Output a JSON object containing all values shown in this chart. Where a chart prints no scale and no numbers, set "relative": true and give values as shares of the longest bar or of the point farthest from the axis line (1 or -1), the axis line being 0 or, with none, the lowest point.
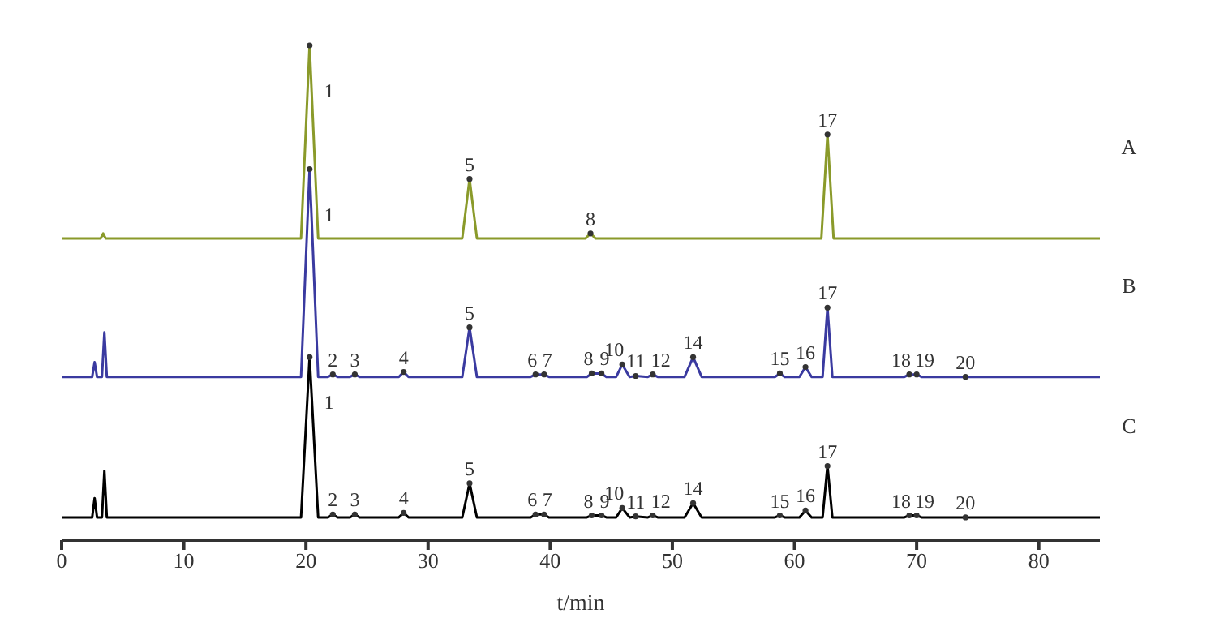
{
  "chart_data": {
    "type": "line",
    "relative": true,
    "xlabel": "t/min",
    "xlim": [
      0,
      85
    ],
    "xticks": [
      0,
      10,
      20,
      30,
      40,
      50,
      60,
      70,
      80
    ],
    "legend": false,
    "grid": false,
    "series": [
      {
        "name": "A",
        "color": "#8a9a2a",
        "x": [
          0,
          3.2,
          3.4,
          3.6,
          19.6,
          20.3,
          21.0,
          32.8,
          33.4,
          34.0,
          42.9,
          43.3,
          43.7,
          62.2,
          62.7,
          63.2,
          85
        ],
        "values": [
          0.61,
          0.61,
          0.62,
          0.61,
          0.61,
          1.0,
          0.61,
          0.61,
          0.73,
          0.61,
          0.61,
          0.62,
          0.61,
          0.61,
          0.82,
          0.61,
          0.61
        ]
      },
      {
        "name": "B",
        "color": "#3a3aa0",
        "x": [
          0,
          2.5,
          2.7,
          2.9,
          3.3,
          3.5,
          3.7,
          19.6,
          20.3,
          21.0,
          21.8,
          22.2,
          22.6,
          23.6,
          24.0,
          24.4,
          27.6,
          28.0,
          28.4,
          32.8,
          33.4,
          34.0,
          38.4,
          38.8,
          39.5,
          39.9,
          43.0,
          43.4,
          44.2,
          44.6,
          45.4,
          45.9,
          46.5,
          47.0,
          48.0,
          48.4,
          48.8,
          51.0,
          51.7,
          52.4,
          58.4,
          58.8,
          59.2,
          60.4,
          60.9,
          61.4,
          62.3,
          62.7,
          63.1,
          69.0,
          69.4,
          70.0,
          70.4,
          74.0,
          85
        ],
        "values": [
          0.33,
          0.33,
          0.36,
          0.33,
          0.33,
          0.42,
          0.33,
          0.33,
          0.75,
          0.33,
          0.33,
          0.335,
          0.33,
          0.33,
          0.335,
          0.33,
          0.33,
          0.34,
          0.33,
          0.33,
          0.43,
          0.33,
          0.33,
          0.335,
          0.335,
          0.33,
          0.33,
          0.337,
          0.337,
          0.33,
          0.33,
          0.355,
          0.33,
          0.332,
          0.33,
          0.335,
          0.33,
          0.33,
          0.37,
          0.33,
          0.33,
          0.337,
          0.33,
          0.33,
          0.35,
          0.33,
          0.33,
          0.47,
          0.33,
          0.33,
          0.335,
          0.335,
          0.33,
          0.33,
          0.33
        ]
      },
      {
        "name": "C",
        "color": "#000000",
        "x": [
          0,
          2.5,
          2.7,
          2.9,
          3.3,
          3.5,
          3.7,
          19.6,
          20.3,
          21.0,
          21.8,
          22.2,
          22.6,
          23.6,
          24.0,
          24.4,
          27.6,
          28.0,
          28.4,
          32.8,
          33.4,
          34.0,
          38.4,
          38.8,
          39.5,
          39.9,
          43.0,
          43.4,
          44.2,
          44.6,
          45.4,
          45.9,
          46.5,
          47.0,
          48.0,
          48.4,
          48.8,
          51.0,
          51.7,
          52.4,
          58.4,
          58.8,
          59.2,
          60.4,
          60.9,
          61.4,
          62.3,
          62.7,
          63.1,
          69.0,
          69.4,
          70.0,
          70.4,
          74.0,
          85
        ],
        "values": [
          0.046,
          0.046,
          0.085,
          0.046,
          0.046,
          0.14,
          0.046,
          0.046,
          0.37,
          0.046,
          0.046,
          0.052,
          0.046,
          0.046,
          0.052,
          0.046,
          0.046,
          0.055,
          0.046,
          0.046,
          0.115,
          0.046,
          0.046,
          0.052,
          0.052,
          0.046,
          0.046,
          0.05,
          0.05,
          0.046,
          0.046,
          0.065,
          0.046,
          0.048,
          0.046,
          0.05,
          0.046,
          0.046,
          0.075,
          0.046,
          0.046,
          0.05,
          0.046,
          0.046,
          0.06,
          0.046,
          0.046,
          0.15,
          0.046,
          0.046,
          0.05,
          0.05,
          0.046,
          0.046,
          0.046
        ]
      }
    ],
    "annotations": [
      {
        "text": "1",
        "x": 20.3,
        "y": 1.0
      },
      {
        "text": "5",
        "x": 33.4,
        "y": 0.73
      },
      {
        "text": "8",
        "x": 43.3,
        "y": 0.62
      },
      {
        "text": "17",
        "x": 62.7,
        "y": 0.82
      },
      {
        "text": "1",
        "x": 20.3,
        "y": 0.75
      },
      {
        "text": "2",
        "x": 22.2,
        "y": 0.335
      },
      {
        "text": "3",
        "x": 24.0,
        "y": 0.335
      },
      {
        "text": "4",
        "x": 28.0,
        "y": 0.34
      },
      {
        "text": "5",
        "x": 33.4,
        "y": 0.43
      },
      {
        "text": "6",
        "x": 38.8,
        "y": 0.335
      },
      {
        "text": "7",
        "x": 39.5,
        "y": 0.335
      },
      {
        "text": "8",
        "x": 43.4,
        "y": 0.337
      },
      {
        "text": "9",
        "x": 44.2,
        "y": 0.337
      },
      {
        "text": "10",
        "x": 45.9,
        "y": 0.355
      },
      {
        "text": "11",
        "x": 47.0,
        "y": 0.332
      },
      {
        "text": "12",
        "x": 48.4,
        "y": 0.335
      },
      {
        "text": "14",
        "x": 51.7,
        "y": 0.37
      },
      {
        "text": "15",
        "x": 58.8,
        "y": 0.337
      },
      {
        "text": "16",
        "x": 60.9,
        "y": 0.35
      },
      {
        "text": "17",
        "x": 62.7,
        "y": 0.47
      },
      {
        "text": "18",
        "x": 69.4,
        "y": 0.335
      },
      {
        "text": "19",
        "x": 70.0,
        "y": 0.335
      },
      {
        "text": "20",
        "x": 74.0,
        "y": 0.33
      },
      {
        "text": "1",
        "x": 20.3,
        "y": 0.37
      },
      {
        "text": "2",
        "x": 22.2,
        "y": 0.052
      },
      {
        "text": "3",
        "x": 24.0,
        "y": 0.052
      },
      {
        "text": "4",
        "x": 28.0,
        "y": 0.055
      },
      {
        "text": "5",
        "x": 33.4,
        "y": 0.115
      },
      {
        "text": "6",
        "x": 38.8,
        "y": 0.052
      },
      {
        "text": "7",
        "x": 39.5,
        "y": 0.052
      },
      {
        "text": "8",
        "x": 43.4,
        "y": 0.05
      },
      {
        "text": "9",
        "x": 44.2,
        "y": 0.05
      },
      {
        "text": "10",
        "x": 45.9,
        "y": 0.065
      },
      {
        "text": "11",
        "x": 47.0,
        "y": 0.048
      },
      {
        "text": "12",
        "x": 48.4,
        "y": 0.05
      },
      {
        "text": "14",
        "x": 51.7,
        "y": 0.075
      },
      {
        "text": "15",
        "x": 58.8,
        "y": 0.05
      },
      {
        "text": "16",
        "x": 60.9,
        "y": 0.06
      },
      {
        "text": "17",
        "x": 62.7,
        "y": 0.15
      },
      {
        "text": "18",
        "x": 69.4,
        "y": 0.05
      },
      {
        "text": "19",
        "x": 70.0,
        "y": 0.05
      },
      {
        "text": "20",
        "x": 74.0,
        "y": 0.046
      }
    ]
  }
}
